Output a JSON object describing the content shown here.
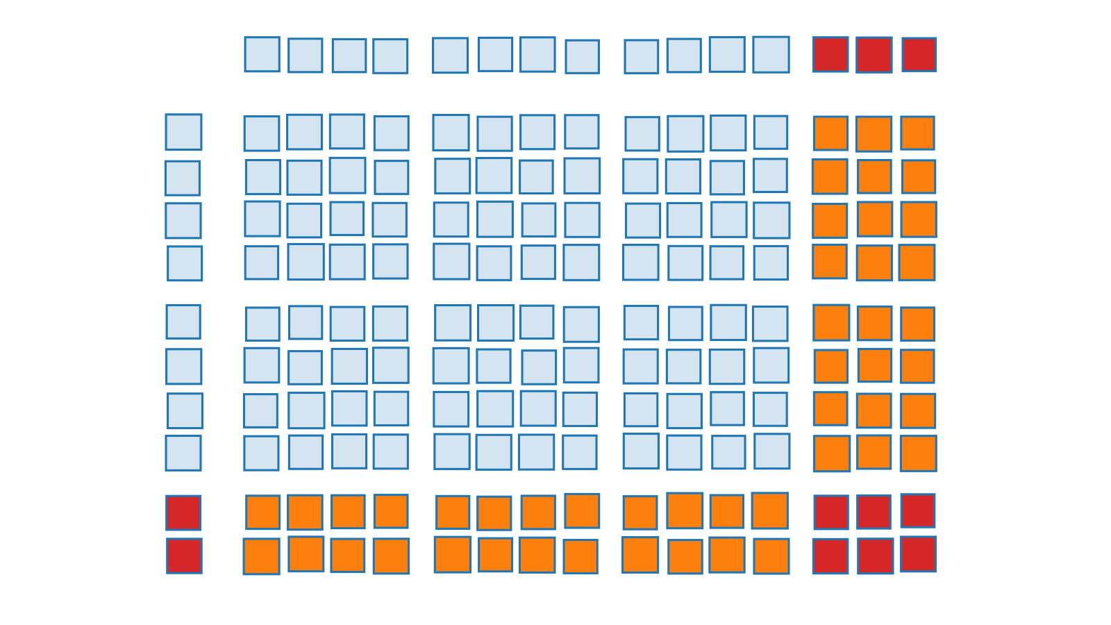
{
  "grid": {
    "stroke": "#2176b4",
    "palette": {
      "light": "#d4e4f0",
      "orange": "#fd7f0d",
      "red": "#d62728"
    },
    "rows": [
      [
        null,
        "light",
        "light",
        "light",
        "red"
      ],
      [
        "light",
        "light",
        "light",
        "light",
        "orange"
      ],
      [
        "light",
        "light",
        "light",
        "light",
        "orange"
      ],
      [
        "light",
        "light",
        "light",
        "light",
        "orange"
      ],
      [
        "light",
        "light",
        "light",
        "light",
        "orange"
      ],
      [
        "light",
        "light",
        "light",
        "light",
        "orange"
      ],
      [
        "light",
        "light",
        "light",
        "light",
        "orange"
      ],
      [
        "light",
        "light",
        "light",
        "light",
        "orange"
      ],
      [
        "light",
        "light",
        "light",
        "light",
        "orange"
      ],
      [
        "red",
        "orange",
        "orange",
        "orange",
        "red"
      ],
      [
        "red",
        "orange",
        "orange",
        "orange",
        "red"
      ]
    ]
  }
}
